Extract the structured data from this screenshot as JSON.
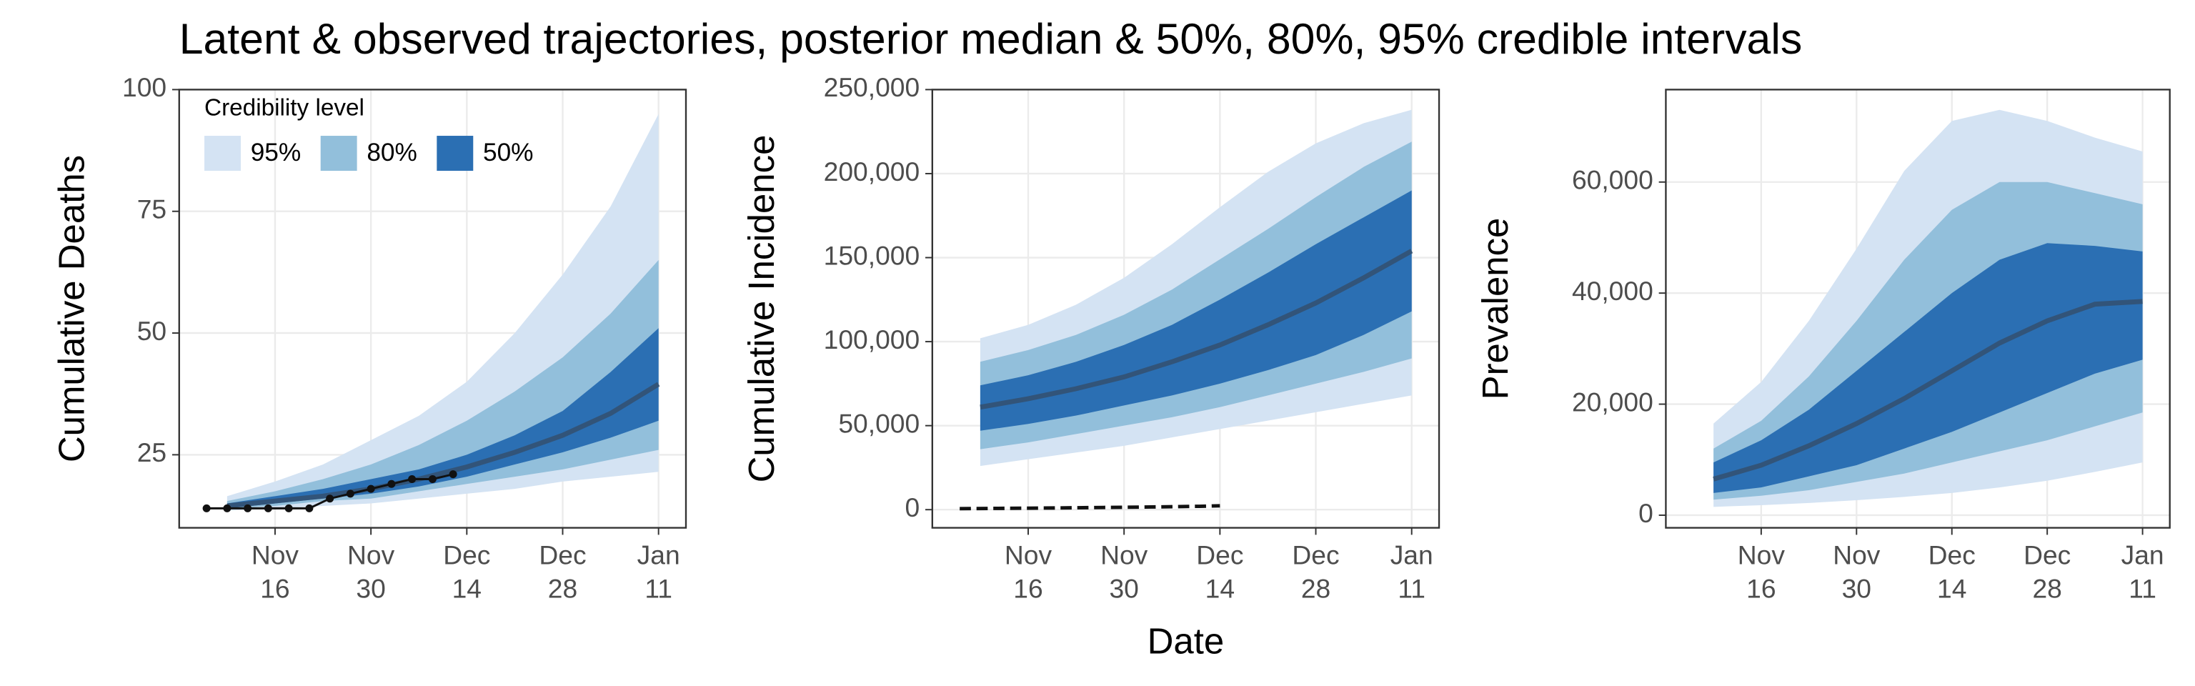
{
  "chart_data": [
    {
      "type": "ribbon",
      "title": "Latent & observed trajectories, posterior median & 50%, 80%, 95% credible intervals",
      "ylabel": "Cumulative Deaths",
      "x": [
        "Nov 9",
        "Nov 16",
        "Nov 23",
        "Nov 30",
        "Dec 7",
        "Dec 14",
        "Dec 21",
        "Dec 28",
        "Jan 4",
        "Jan 11"
      ],
      "xlim": [
        "Nov 2",
        "Jan 15"
      ],
      "xticks": [
        "Nov 16",
        "Nov 30",
        "Dec 14",
        "Dec 28",
        "Jan 11"
      ],
      "ylim": [
        10,
        100
      ],
      "yticks": [
        25,
        50,
        75,
        100
      ],
      "grid": true,
      "legend": {
        "title": "Credibility level",
        "position": "top-left"
      },
      "series": [
        {
          "name": "95%",
          "color": "#d4e3f3",
          "lower": [
            13.5,
            14,
            14.5,
            15,
            16,
            17,
            18,
            19.5,
            20.5,
            21.5
          ],
          "upper": [
            16.5,
            19.5,
            23,
            28,
            33,
            40,
            50,
            62,
            76,
            95
          ]
        },
        {
          "name": "80%",
          "color": "#92bfdb",
          "lower": [
            14,
            14.5,
            15.5,
            16,
            17.5,
            19,
            20.5,
            22,
            24,
            26
          ],
          "upper": [
            15.5,
            17.5,
            20,
            23,
            27,
            32,
            38,
            45,
            54,
            65
          ]
        },
        {
          "name": "50%",
          "color": "#2b6fb3",
          "lower": [
            14,
            15,
            16,
            17,
            18.5,
            20.5,
            23,
            25.5,
            28.5,
            32
          ],
          "upper": [
            15,
            16.5,
            18,
            20,
            22,
            25,
            29,
            34,
            42,
            51
          ]
        }
      ],
      "median": {
        "color": "#34506f",
        "values": [
          14.5,
          15.5,
          16.5,
          18,
          20,
          22.5,
          25.5,
          29,
          33.5,
          39.5
        ]
      },
      "observed": {
        "color": "#111111",
        "style": "points",
        "x": [
          "Nov 6",
          "Nov 9",
          "Nov 12",
          "Nov 15",
          "Nov 18",
          "Nov 21",
          "Nov 24",
          "Nov 27",
          "Nov 30",
          "Dec 3",
          "Dec 6",
          "Dec 9",
          "Dec 12"
        ],
        "values": [
          14,
          14,
          14,
          14,
          14,
          14,
          16,
          17,
          18,
          19,
          20,
          20,
          21
        ]
      }
    },
    {
      "type": "ribbon",
      "ylabel": "Cumulative Incidence",
      "xlabel": "Date",
      "x": [
        "Nov 9",
        "Nov 16",
        "Nov 23",
        "Nov 30",
        "Dec 7",
        "Dec 14",
        "Dec 21",
        "Dec 28",
        "Jan 4",
        "Jan 11"
      ],
      "xlim": [
        "Nov 2",
        "Jan 15"
      ],
      "xticks": [
        "Nov 16",
        "Nov 30",
        "Dec 14",
        "Dec 28",
        "Jan 11"
      ],
      "ylim": [
        -10800,
        250000
      ],
      "yticks": [
        0,
        {
          "value": 50000,
          "label": "50,000"
        },
        {
          "value": 100000,
          "label": "100,000"
        },
        {
          "value": 150000,
          "label": "150,000"
        },
        {
          "value": 200000,
          "label": "200,000"
        },
        {
          "value": 250000,
          "label": "250,000"
        }
      ],
      "grid": true,
      "series": [
        {
          "color": "#d4e3f3",
          "lower": [
            26000,
            30000,
            34000,
            38000,
            43000,
            48000,
            53000,
            58000,
            63000,
            68000
          ],
          "upper": [
            102000,
            110000,
            122000,
            138000,
            158000,
            180000,
            201000,
            218000,
            230000,
            238000
          ]
        },
        {
          "color": "#92bfdb",
          "lower": [
            36000,
            40000,
            45000,
            50000,
            55000,
            61000,
            68000,
            75000,
            82000,
            90000
          ],
          "upper": [
            88000,
            95000,
            104000,
            116000,
            131000,
            149000,
            167000,
            186000,
            204000,
            219000
          ]
        },
        {
          "color": "#2b6fb3",
          "lower": [
            47000,
            51000,
            56000,
            62000,
            68000,
            75000,
            83000,
            92000,
            104000,
            118000
          ],
          "upper": [
            74000,
            80000,
            88000,
            98000,
            110000,
            125000,
            141000,
            158000,
            174000,
            190000
          ]
        }
      ],
      "median": {
        "color": "#34506f",
        "values": [
          61000,
          66000,
          72000,
          79000,
          88000,
          98000,
          110000,
          123000,
          138000,
          154000
        ]
      },
      "observed": {
        "color": "#111111",
        "style": "dashed",
        "x": [
          "Nov 6",
          "Nov 13",
          "Nov 20",
          "Nov 27",
          "Dec 4",
          "Dec 11",
          "Dec 14"
        ],
        "values": [
          600,
          800,
          1000,
          1300,
          1600,
          2000,
          2300
        ]
      }
    },
    {
      "type": "ribbon",
      "ylabel": "Prevalence",
      "x": [
        "Nov 9",
        "Nov 16",
        "Nov 23",
        "Nov 30",
        "Dec 7",
        "Dec 14",
        "Dec 21",
        "Dec 28",
        "Jan 4",
        "Jan 11"
      ],
      "xlim": [
        "Nov 2",
        "Jan 15"
      ],
      "xticks": [
        "Nov 16",
        "Nov 30",
        "Dec 14",
        "Dec 28",
        "Jan 11"
      ],
      "ylim": [
        -2270,
        76650
      ],
      "yticks": [
        0,
        {
          "value": 20000,
          "label": "20,000"
        },
        {
          "value": 40000,
          "label": "40,000"
        },
        {
          "value": 60000,
          "label": "60,000"
        }
      ],
      "grid": true,
      "series": [
        {
          "color": "#d4e3f3",
          "lower": [
            1500,
            1800,
            2200,
            2700,
            3300,
            4000,
            5000,
            6200,
            7800,
            9500
          ],
          "upper": [
            16500,
            24000,
            35000,
            48000,
            62000,
            71000,
            73000,
            71000,
            68000,
            65500
          ]
        },
        {
          "color": "#92bfdb",
          "lower": [
            2800,
            3500,
            4500,
            6000,
            7500,
            9500,
            11500,
            13500,
            16000,
            18500
          ],
          "upper": [
            12000,
            17000,
            25000,
            35000,
            46000,
            55000,
            60000,
            60000,
            58000,
            56000
          ]
        },
        {
          "color": "#2b6fb3",
          "lower": [
            4000,
            5000,
            7000,
            9000,
            12000,
            15000,
            18500,
            22000,
            25500,
            28000
          ],
          "upper": [
            9500,
            13500,
            19000,
            26000,
            33000,
            40000,
            46000,
            49000,
            48500,
            47500
          ]
        }
      ],
      "median": {
        "color": "#34506f",
        "values": [
          6500,
          9000,
          12500,
          16500,
          21000,
          26000,
          31000,
          35000,
          38000,
          38500
        ]
      }
    }
  ]
}
